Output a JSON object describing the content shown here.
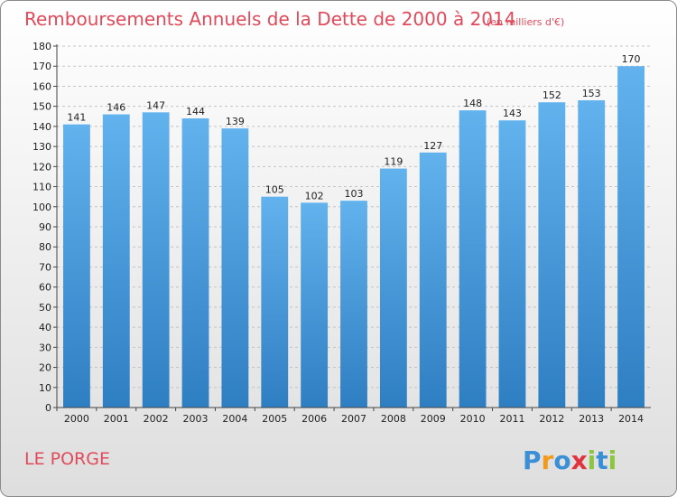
{
  "chart_data": {
    "type": "bar",
    "title": "Remboursements Annuels de la Dette de 2000 à 2014",
    "subtitle": "(en milliers d'€)",
    "categories": [
      "2000",
      "2001",
      "2002",
      "2003",
      "2004",
      "2005",
      "2006",
      "2007",
      "2008",
      "2009",
      "2010",
      "2011",
      "2012",
      "2013",
      "2014"
    ],
    "values": [
      141,
      146,
      147,
      144,
      139,
      105,
      102,
      103,
      119,
      127,
      148,
      143,
      152,
      153,
      170
    ],
    "ylim": [
      0,
      180
    ],
    "ytick_step": 10,
    "grid": true,
    "xlabel": "",
    "ylabel": ""
  },
  "footer": {
    "commune": "LE PORGE",
    "brand_letters": [
      "P",
      "r",
      "o",
      "x",
      "i",
      "t",
      "i"
    ],
    "brand_colors": [
      "#3a8fd6",
      "#f29a1d",
      "#3a8fd6",
      "#e2343e",
      "#8cc63f",
      "#3a8fd6",
      "#8cc63f"
    ]
  },
  "colors": {
    "bar_light": "#62b2ee",
    "bar_dark": "#2e7ec2",
    "title": "#e04a5a"
  }
}
